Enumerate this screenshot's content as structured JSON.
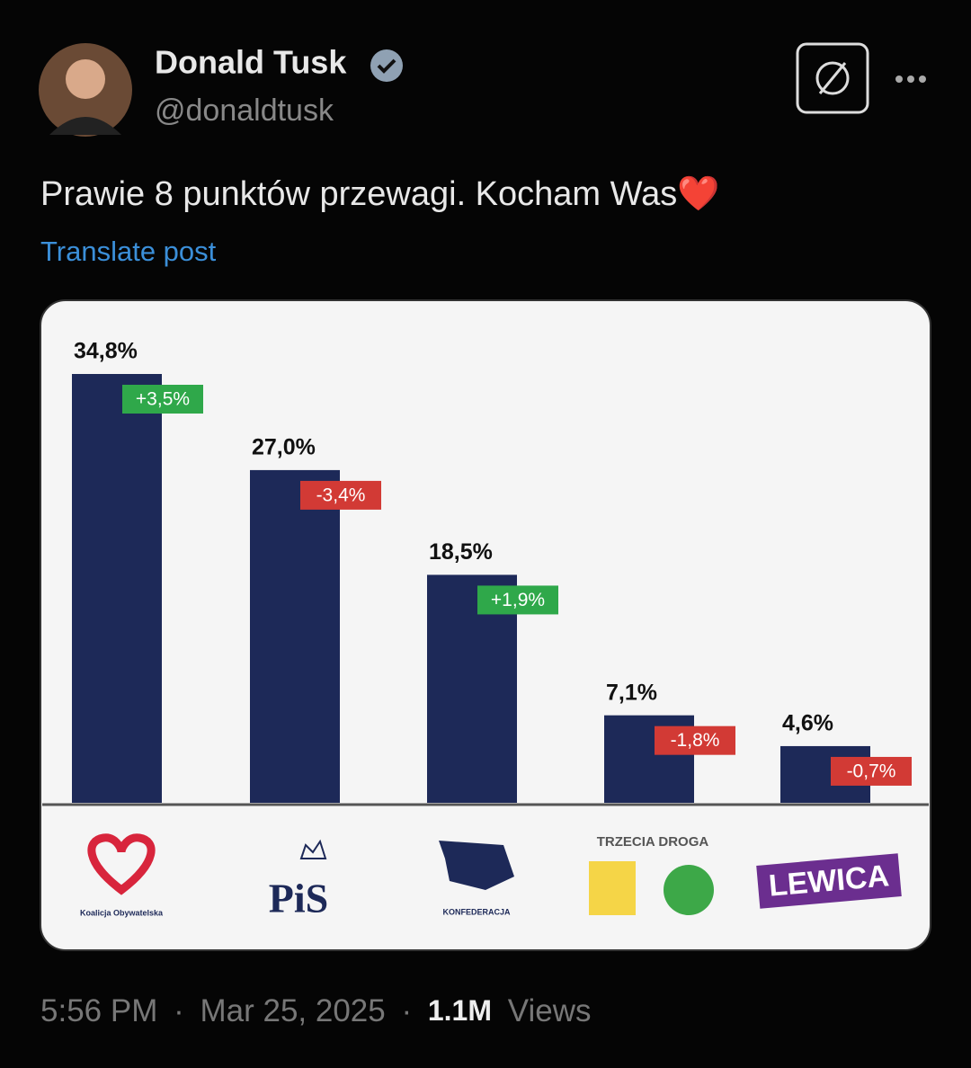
{
  "post": {
    "author_name": "Donald Tusk",
    "handle": "@donaldtusk",
    "text": "Prawie 8 punktów przewagi. Kocham Was❤️",
    "translate": "Translate post",
    "time": "5:56 PM",
    "separator": "·",
    "date": "Mar 25, 2025",
    "views": "1.1M",
    "views_label": "Views"
  },
  "chart_data": {
    "type": "bar",
    "categories": [
      "Koalicja Obywatelska",
      "PiS",
      "KONFEDERACJA",
      "TRZECIA DROGA",
      "LEWICA"
    ],
    "values": [
      34.8,
      27.0,
      18.5,
      7.1,
      4.6
    ],
    "value_labels": [
      "34,8%",
      "27,0%",
      "18,5%",
      "7,1%",
      "4,6%"
    ],
    "changes": [
      3.5,
      -3.4,
      1.9,
      -1.8,
      -0.7
    ],
    "change_labels": [
      "+3,5%",
      "-3,4%",
      "+1,9%",
      "-1,8%",
      "-0,7%"
    ],
    "color": "#1d2958"
  }
}
